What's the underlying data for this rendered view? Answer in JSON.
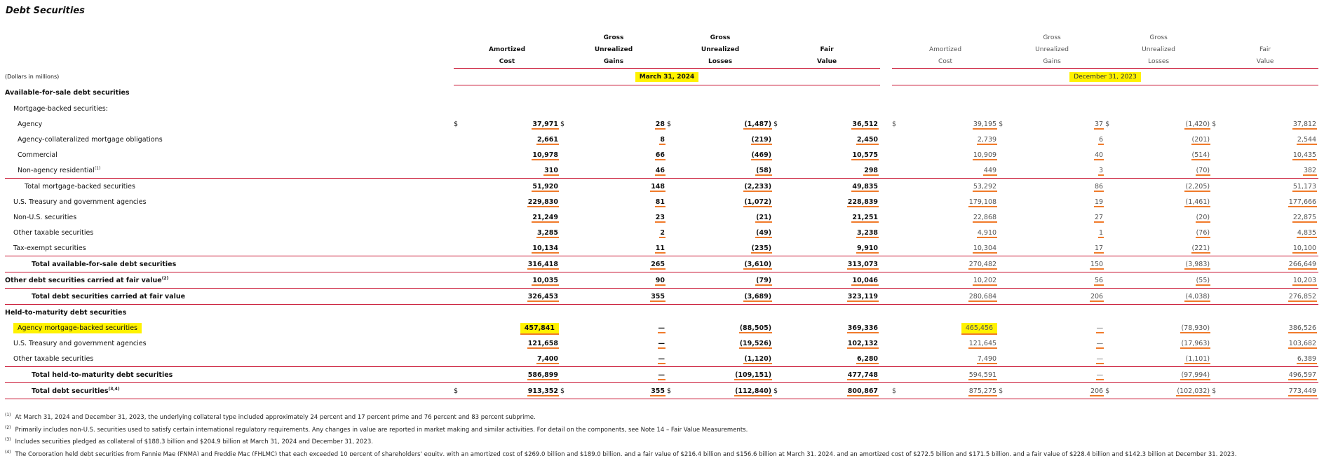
{
  "title": "Debt Securities",
  "units": "(Dollars in millions)",
  "columns": [
    [
      "Amortized",
      "Cost"
    ],
    [
      "Gross",
      "Unrealized",
      "Gains"
    ],
    [
      "Gross",
      "Unrealized",
      "Losses"
    ],
    [
      "Fair",
      "Value"
    ]
  ],
  "periods": [
    "March 31, 2024",
    "December 31, 2023"
  ],
  "rows": [
    {
      "label": "Available-for-sale debt securities"
    },
    {
      "label": "Mortgage-backed securities:"
    },
    {
      "label": "Agency",
      "currency": "$",
      "cells": [
        "37,971",
        "28",
        "(1,487)",
        "36,512",
        "39,195",
        "37",
        "(1,420)",
        "37,812"
      ]
    },
    {
      "label": "Agency-collateralized mortgage obligations",
      "cells": [
        "2,661",
        "8",
        "(219)",
        "2,450",
        "2,739",
        "6",
        "(201)",
        "2,544"
      ]
    },
    {
      "label": "Commercial",
      "cells": [
        "10,978",
        "66",
        "(469)",
        "10,575",
        "10,909",
        "40",
        "(514)",
        "10,435"
      ]
    },
    {
      "label": "Non-agency residential",
      "note": "(1)",
      "cells": [
        "310",
        "46",
        "(58)",
        "298",
        "449",
        "3",
        "(70)",
        "382"
      ]
    },
    {
      "label": "Total mortgage-backed securities",
      "cells": [
        "51,920",
        "148",
        "(2,233)",
        "49,835",
        "53,292",
        "86",
        "(2,205)",
        "51,173"
      ]
    },
    {
      "label": "U.S. Treasury and government agencies",
      "cells": [
        "229,830",
        "81",
        "(1,072)",
        "228,839",
        "179,108",
        "19",
        "(1,461)",
        "177,666"
      ]
    },
    {
      "label": "Non-U.S. securities",
      "cells": [
        "21,249",
        "23",
        "(21)",
        "21,251",
        "22,868",
        "27",
        "(20)",
        "22,875"
      ]
    },
    {
      "label": "Other taxable securities",
      "cells": [
        "3,285",
        "2",
        "(49)",
        "3,238",
        "4,910",
        "1",
        "(76)",
        "4,835"
      ]
    },
    {
      "label": "Tax-exempt securities",
      "cells": [
        "10,134",
        "11",
        "(235)",
        "9,910",
        "10,304",
        "17",
        "(221)",
        "10,100"
      ]
    },
    {
      "label": "Total available-for-sale debt securities",
      "cells": [
        "316,418",
        "265",
        "(3,610)",
        "313,073",
        "270,482",
        "150",
        "(3,983)",
        "266,649"
      ]
    },
    {
      "label": "Other debt securities carried at fair value",
      "note": "(2)",
      "cells": [
        "10,035",
        "90",
        "(79)",
        "10,046",
        "10,202",
        "56",
        "(55)",
        "10,203"
      ]
    },
    {
      "label": "Total debt securities carried at fair value",
      "cells": [
        "326,453",
        "355",
        "(3,689)",
        "323,119",
        "280,684",
        "206",
        "(4,038)",
        "276,852"
      ]
    },
    {
      "label": "Held-to-maturity debt securities"
    },
    {
      "label": "Agency mortgage-backed securities",
      "cells": [
        "457,841",
        "—",
        "(88,505)",
        "369,336",
        "465,456",
        "—",
        "(78,930)",
        "386,526"
      ]
    },
    {
      "label": "U.S. Treasury and government agencies",
      "cells": [
        "121,658",
        "—",
        "(19,526)",
        "102,132",
        "121,645",
        "—",
        "(17,963)",
        "103,682"
      ]
    },
    {
      "label": "Other taxable securities",
      "cells": [
        "7,400",
        "—",
        "(1,120)",
        "6,280",
        "7,490",
        "—",
        "(1,101)",
        "6,389"
      ]
    },
    {
      "label": "Total held-to-maturity debt securities",
      "cells": [
        "586,899",
        "—",
        "(109,151)",
        "477,748",
        "594,591",
        "—",
        "(97,994)",
        "496,597"
      ]
    },
    {
      "label": "Total debt securities",
      "note": "(3,4)",
      "currency": "$",
      "cells": [
        "913,352",
        "355",
        "(112,840)",
        "800,867",
        "875,275",
        "206",
        "(102,032)",
        "773,449"
      ]
    }
  ],
  "footnotes": [
    {
      "marker": "(1)",
      "text": "At March 31, 2024 and December 31, 2023, the underlying collateral type included approximately 24 percent and 17 percent prime and 76 percent and 83 percent subprime."
    },
    {
      "marker": "(2)",
      "text": "Primarily includes non-U.S. securities used to satisfy certain international regulatory requirements. Any changes in value are reported in market making and similar activities. For detail on the components, see Note 14 – Fair Value Measurements."
    },
    {
      "marker": "(3)",
      "text": "Includes securities pledged as collateral of $188.3 billion and $204.9 billion at March 31, 2024 and December 31, 2023."
    },
    {
      "marker": "(4)",
      "text": "The Corporation held debt securities from Fannie Mae (FNMA) and Freddie Mac (FHLMC) that each exceeded 10 percent of shareholders' equity, with an amortized cost of $269.0 billion and $189.0 billion, and a fair value of $216.4 billion and $156.6 billion at March 31, 2024, and an amortized cost of $272.5 billion and $171.5 billion, and a fair value of $228.4 billion and $142.3 billion at December 31, 2023."
    }
  ]
}
